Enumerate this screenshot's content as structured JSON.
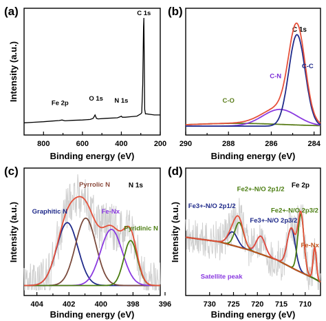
{
  "chart_data": [
    {
      "panel": "(a)",
      "type": "line",
      "xlabel": "Binding energy (eV)",
      "ylabel": "Intensity (a.u.)",
      "xlim": [
        900,
        200
      ],
      "xticks": [
        800,
        600,
        400,
        200
      ],
      "x_reversed": true,
      "yticks": "none",
      "series": [
        {
          "color": "#000000",
          "x": [
            900,
            850,
            800,
            760,
            720,
            705,
            690,
            650,
            600,
            560,
            545,
            535,
            528,
            520,
            480,
            420,
            405,
            400,
            395,
            380,
            350,
            320,
            300,
            295,
            290,
            286,
            284,
            282,
            280,
            276,
            270,
            250,
            230,
            215,
            205,
            200
          ],
          "y": [
            0.06,
            0.065,
            0.07,
            0.075,
            0.08,
            0.085,
            0.078,
            0.082,
            0.085,
            0.09,
            0.1,
            0.13,
            0.1,
            0.095,
            0.1,
            0.105,
            0.115,
            0.12,
            0.11,
            0.11,
            0.115,
            0.12,
            0.14,
            0.15,
            0.4,
            0.92,
            1.0,
            0.6,
            0.18,
            0.14,
            0.14,
            0.135,
            0.13,
            0.13,
            0.13,
            0.13
          ]
        }
      ],
      "annotations": [
        {
          "text": "Fe 2p",
          "x": 715
        },
        {
          "text": "O 1s",
          "x": 530
        },
        {
          "text": "N 1s",
          "x": 400
        },
        {
          "text": "C 1s",
          "x": 284
        }
      ]
    },
    {
      "panel": "(b)",
      "type": "line",
      "corner_label": "C 1s",
      "xlabel": "Binding energy (eV)",
      "ylabel": "",
      "xlim": [
        290,
        283.7
      ],
      "xticks": [
        290,
        288,
        286,
        284
      ],
      "x_reversed": true,
      "series": [
        {
          "label": "C-O",
          "label_color": "#5a7d1a",
          "color": "#5a7d1a",
          "type": "gaussian",
          "center": 287.6,
          "fwhm": 5.0,
          "height": 0.025,
          "baseline": 0.03,
          "label_x": 288.0,
          "label_y": 0.24
        },
        {
          "label": "C-N",
          "label_color": "#7a2bd6",
          "color": "#8a3ae0",
          "type": "gaussian",
          "center": 285.6,
          "fwhm": 1.9,
          "height": 0.15,
          "baseline": 0.03,
          "label_x": 285.8,
          "label_y": 0.46
        },
        {
          "label": "C-C",
          "label_color": "#1f2a8a",
          "color": "#1f2a8a",
          "type": "gaussian",
          "center": 284.8,
          "fwhm": 0.9,
          "height": 0.82,
          "baseline": 0.03,
          "label_x": 284.3,
          "label_y": 0.55
        },
        {
          "label": "",
          "color": "#e5503a",
          "type": "envelope",
          "of": [
            0,
            1,
            2
          ],
          "baseline": 0.03,
          "width": 2.5
        }
      ]
    },
    {
      "panel": "(c)",
      "type": "line",
      "corner_label": "N 1s",
      "xlabel": "Binding energy (eV)",
      "ylabel": "Intensity (a.u.)",
      "xlim": [
        404.8,
        396.3
      ],
      "xticks": [
        404,
        402,
        400,
        398,
        396
      ],
      "x_reversed": true,
      "raw_color": "#cfcfcf",
      "series": [
        {
          "label": "Graphitic N",
          "label_color": "#1f2a8a",
          "color": "#1f2a8a",
          "type": "gaussian",
          "center": 402.1,
          "fwhm": 1.55,
          "height": 0.56,
          "baseline": 0.04,
          "label_x": 403.2,
          "label_y": 0.68
        },
        {
          "label": "Pyrrolic N",
          "label_color": "#8b4a3c",
          "color": "#7a4a3c",
          "type": "gaussian",
          "center": 400.95,
          "fwhm": 1.5,
          "height": 0.6,
          "baseline": 0.04,
          "label_x": 400.4,
          "label_y": 0.92
        },
        {
          "label": "Fe-Nx",
          "label_color": "#8a3ae0",
          "color": "#8a3ae0",
          "type": "gaussian",
          "center": 399.35,
          "fwhm": 1.6,
          "height": 0.5,
          "baseline": 0.04,
          "label_x": 399.4,
          "label_y": 0.68
        },
        {
          "label": "Pyridinic N",
          "label_color": "#4a7d10",
          "color": "#4a7d10",
          "type": "gaussian",
          "center": 398.15,
          "fwhm": 1.0,
          "height": 0.4,
          "baseline": 0.04,
          "label_x": 397.5,
          "label_y": 0.53
        },
        {
          "label": "",
          "color": "#e5503a",
          "type": "envelope",
          "of": [
            0,
            1,
            2,
            3
          ],
          "baseline": 0.04,
          "width": 2.2
        }
      ]
    },
    {
      "panel": "(d)",
      "type": "line",
      "corner_label": "Fe 2p",
      "xlabel": "Binding energy (eV)",
      "ylabel": "Intensity (a.u.)",
      "xlim": [
        735,
        706.8
      ],
      "xticks": [
        730,
        725,
        720,
        715,
        710
      ],
      "x_reversed": true,
      "raw_color": "#cfcfcf",
      "background": {
        "color": "#7a4a3c",
        "x": [
          735,
          728,
          722,
          716,
          712,
          708,
          706.8
        ],
        "y": [
          0.47,
          0.43,
          0.36,
          0.27,
          0.18,
          0.1,
          0.07
        ]
      },
      "series": [
        {
          "label": "Satellite peak",
          "label_color": "#8a3ae0",
          "color": "#8a3ae0",
          "type": "gaussian",
          "center": 719.3,
          "fwhm": 2.2,
          "height": 0.16,
          "baseline": "bg",
          "label_x": 727.5,
          "label_y": 0.1
        },
        {
          "label": "Fe3+-N/O 2p1/2",
          "label_color": "#1f2a8a",
          "color": "#1f2a8a",
          "type": "gaussian",
          "center": 725.2,
          "fwhm": 2.4,
          "height": 0.12,
          "baseline": "bg",
          "label_x": 729.5,
          "label_y": 0.73
        },
        {
          "label": "Fe3+-N/O 2p3/2",
          "label_color": "#1f2a8a",
          "color": "#1f2a8a",
          "type": "gaussian",
          "center": 712.9,
          "fwhm": 2.0,
          "height": 0.35,
          "baseline": "bg",
          "label_x": 716.6,
          "label_y": 0.6
        },
        {
          "label": "Fe2+-N/O 2p1/2",
          "label_color": "#4a7d10",
          "color": "#4a7d10",
          "type": "gaussian",
          "center": 723.8,
          "fwhm": 2.2,
          "height": 0.22,
          "baseline": "bg",
          "label_x": 719.3,
          "label_y": 0.88
        },
        {
          "label": "Fe2+-N/O 2p3/2",
          "label_color": "#4a7d10",
          "color": "#4a7d10",
          "type": "gaussian",
          "center": 710.9,
          "fwhm": 1.5,
          "height": 0.52,
          "baseline": "bg",
          "label_x": 712.2,
          "label_y": 0.69
        },
        {
          "label": "Fe-Nx",
          "label_color": "#c2521a",
          "color": "#c2521a",
          "type": "gaussian",
          "center": 708.0,
          "fwhm": 0.8,
          "height": 0.28,
          "baseline": "bg",
          "label_x": 709.0,
          "label_y": 0.38
        },
        {
          "label": "",
          "color": "#e5503a",
          "type": "envelope",
          "of": [
            0,
            1,
            2,
            3,
            4,
            5
          ],
          "baseline": "bg",
          "width": 2.2
        }
      ]
    }
  ]
}
